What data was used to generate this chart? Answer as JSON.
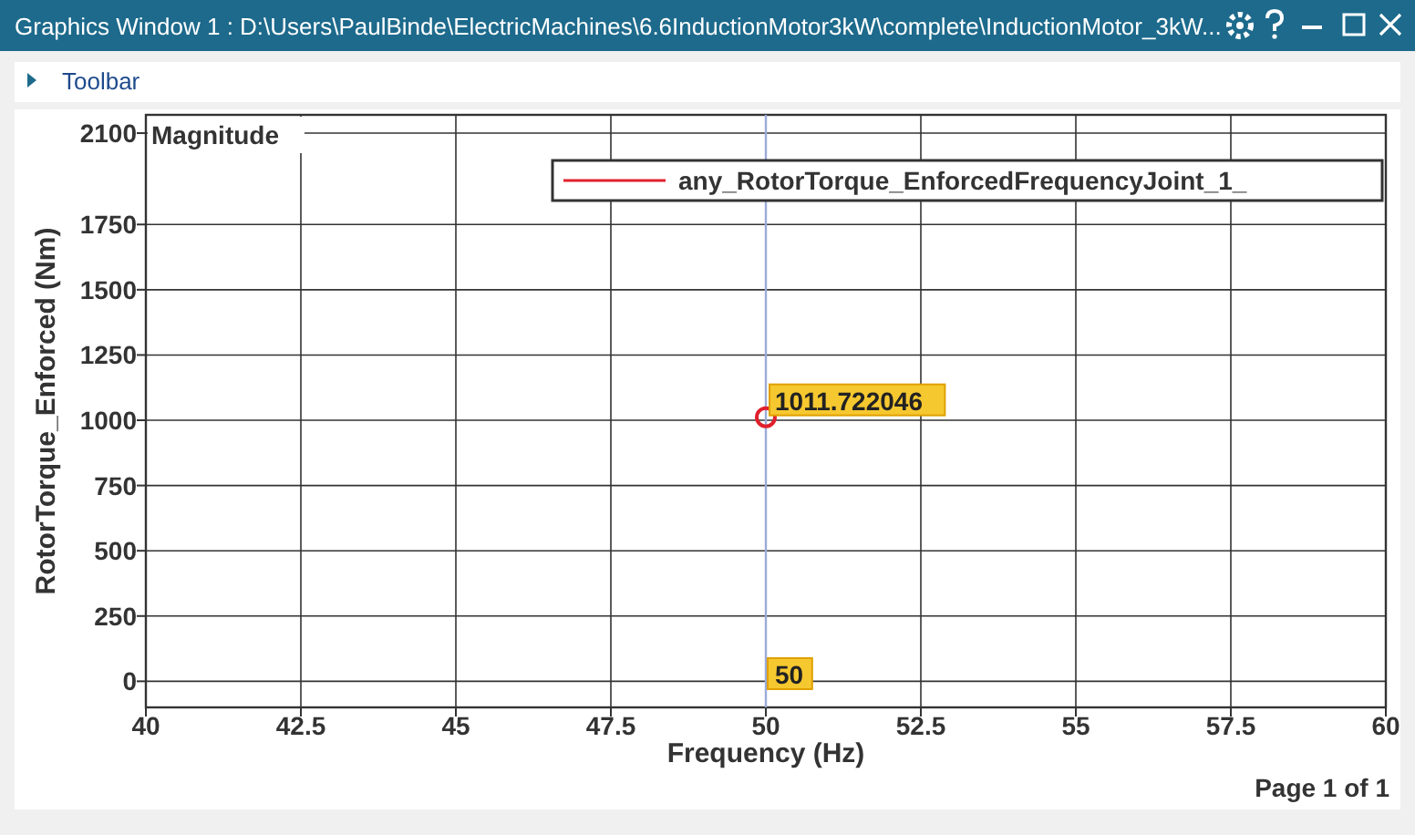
{
  "chart_data": {
    "type": "line",
    "title": "Graphics Window 1 : D:\\Users\\PaulBinde\\ElectricMachines\\6.6InductionMotor3kW\\complete\\InductionMotor_3kW...",
    "subtitle": "Toolbar",
    "xlabel": "Frequency (Hz)",
    "ylabel": "RotorTorque_Enforced (Nm)",
    "x": [
      50
    ],
    "series": [
      {
        "name": "any_RotorTorque_EnforcedFrequencyJoint_1_",
        "color": "#e0202c",
        "values": [
          1011.722046
        ],
        "value_labels": [
          "1011.722046"
        ]
      }
    ],
    "xlim": [
      40,
      60
    ],
    "xticks": [
      40,
      42.5,
      45,
      47.5,
      50,
      52.5,
      55,
      57.5,
      60
    ],
    "ylim": [
      -100,
      2170
    ],
    "yticks": [
      0,
      250,
      500,
      750,
      1000,
      1250,
      1500,
      1750,
      2100
    ],
    "grid": true,
    "legend": "top right",
    "marker": "circle",
    "ref_lines": [
      {
        "axis": "x",
        "value": 50,
        "label": "50",
        "color": "#9aaad8"
      }
    ],
    "annotations": [
      "Magnitude",
      "Page 1 of 1"
    ]
  }
}
